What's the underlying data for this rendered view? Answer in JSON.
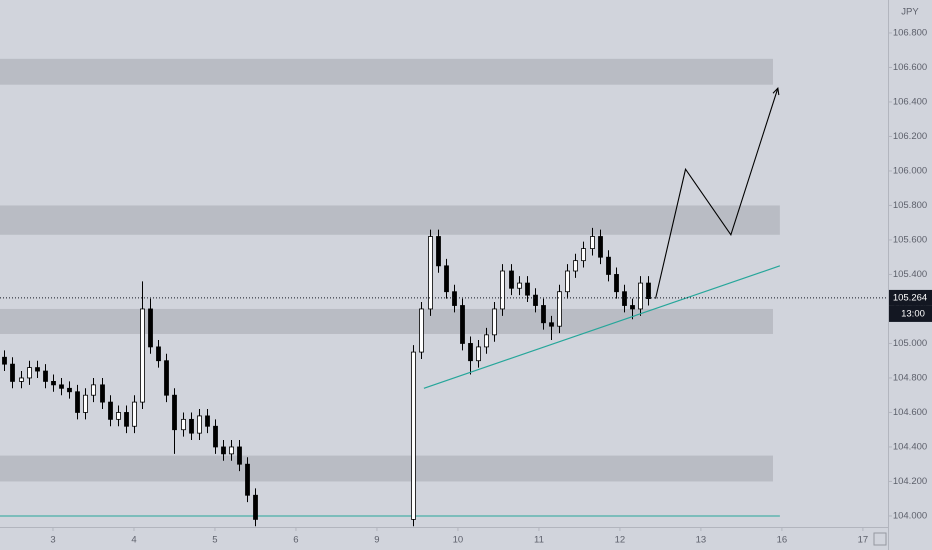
{
  "chart_data": {
    "type": "candlestick",
    "currency": "JPY",
    "x": [
      -0.6,
      -0.5,
      -0.4,
      -0.3,
      -0.2,
      -0.1,
      0,
      0.1,
      0.2,
      0.3,
      0.4,
      0.5,
      0.6,
      0.7,
      0.8,
      0.9,
      1.0,
      1.1,
      1.2,
      1.3,
      1.4,
      1.5,
      1.6,
      1.7,
      1.8,
      1.9,
      2.0,
      2.1,
      2.2,
      2.3,
      2.4,
      2.5,
      4.45,
      4.55,
      4.65,
      4.75,
      4.85,
      4.95,
      5.05,
      5.15,
      5.25,
      5.35,
      5.45,
      5.55,
      5.65,
      5.75,
      5.85,
      5.95,
      6.05,
      6.15,
      6.25,
      6.35,
      6.45,
      6.55,
      6.65,
      6.75,
      6.85,
      6.95,
      7.05,
      7.15,
      7.25,
      7.35
    ],
    "open": [
      104.92,
      104.88,
      104.78,
      104.8,
      104.86,
      104.84,
      104.78,
      104.76,
      104.74,
      104.72,
      104.6,
      104.7,
      104.76,
      104.66,
      104.56,
      104.6,
      104.52,
      104.66,
      105.2,
      104.98,
      104.9,
      104.7,
      104.5,
      104.56,
      104.48,
      104.58,
      104.52,
      104.4,
      104.36,
      104.4,
      104.3,
      104.12,
      103.98,
      104.95,
      105.2,
      105.62,
      105.45,
      105.3,
      105.22,
      105.0,
      104.9,
      104.98,
      105.05,
      105.2,
      105.42,
      105.32,
      105.35,
      105.28,
      105.22,
      105.12,
      105.1,
      105.3,
      105.42,
      105.48,
      105.55,
      105.62,
      105.5,
      105.4,
      105.3,
      105.22,
      105.2,
      105.35
    ],
    "high": [
      104.96,
      104.92,
      104.84,
      104.9,
      104.9,
      104.88,
      104.82,
      104.8,
      104.78,
      104.76,
      104.74,
      104.8,
      104.8,
      104.7,
      104.64,
      104.64,
      104.7,
      105.36,
      105.26,
      105.02,
      104.94,
      104.74,
      104.6,
      104.6,
      104.62,
      104.62,
      104.56,
      104.44,
      104.44,
      104.44,
      104.34,
      104.16,
      104.99,
      105.24,
      105.66,
      105.66,
      105.49,
      105.34,
      105.26,
      105.04,
      105.02,
      105.09,
      105.24,
      105.46,
      105.46,
      105.39,
      105.39,
      105.32,
      105.26,
      105.16,
      105.34,
      105.46,
      105.52,
      105.59,
      105.67,
      105.66,
      105.54,
      105.44,
      105.34,
      105.26,
      105.39,
      105.39
    ],
    "low": [
      104.84,
      104.74,
      104.74,
      104.76,
      104.8,
      104.74,
      104.72,
      104.7,
      104.68,
      104.56,
      104.56,
      104.66,
      104.62,
      104.52,
      104.52,
      104.48,
      104.48,
      104.62,
      104.94,
      104.86,
      104.66,
      104.36,
      104.46,
      104.44,
      104.44,
      104.48,
      104.36,
      104.32,
      104.32,
      104.26,
      104.08,
      103.94,
      103.94,
      104.91,
      105.16,
      105.41,
      105.26,
      105.18,
      104.96,
      104.82,
      104.86,
      104.94,
      105.01,
      105.16,
      105.28,
      105.28,
      105.24,
      105.18,
      105.08,
      105.02,
      105.06,
      105.26,
      105.38,
      105.44,
      105.51,
      105.46,
      105.36,
      105.26,
      105.18,
      105.14,
      105.16,
      105.22
    ],
    "close": [
      104.88,
      104.78,
      104.8,
      104.86,
      104.84,
      104.78,
      104.76,
      104.74,
      104.72,
      104.6,
      104.7,
      104.76,
      104.66,
      104.56,
      104.6,
      104.52,
      104.66,
      105.2,
      104.98,
      104.9,
      104.7,
      104.5,
      104.56,
      104.48,
      104.58,
      104.52,
      104.4,
      104.36,
      104.4,
      104.3,
      104.12,
      103.98,
      104.95,
      105.2,
      105.62,
      105.45,
      105.3,
      105.22,
      105.0,
      104.9,
      104.98,
      105.05,
      105.2,
      105.42,
      105.32,
      105.35,
      105.28,
      105.22,
      105.12,
      105.1,
      105.3,
      105.42,
      105.48,
      105.55,
      105.62,
      105.5,
      105.4,
      105.3,
      105.22,
      105.2,
      105.35,
      105.26
    ],
    "up_color": "#ffffff",
    "down_color": "#000000",
    "xlim": [
      -0.654,
      10.31
    ],
    "ylim": [
      103.936,
      106.991
    ],
    "xticks": [
      {
        "value": 0,
        "label": "3"
      },
      {
        "value": 1,
        "label": "4"
      },
      {
        "value": 2,
        "label": "5"
      },
      {
        "value": 3,
        "label": "6"
      },
      {
        "value": 4,
        "label": "9"
      },
      {
        "value": 5,
        "label": "10"
      },
      {
        "value": 6,
        "label": "11"
      },
      {
        "value": 7,
        "label": "12"
      },
      {
        "value": 8,
        "label": "13"
      },
      {
        "value": 9,
        "label": "16"
      },
      {
        "value": 10,
        "label": "17"
      }
    ],
    "yticks": [
      {
        "value": 104.0,
        "label": "104.000"
      },
      {
        "value": 104.2,
        "label": "104.200"
      },
      {
        "value": 104.4,
        "label": "104.400"
      },
      {
        "value": 104.6,
        "label": "104.600"
      },
      {
        "value": 104.8,
        "label": "104.800"
      },
      {
        "value": 105.0,
        "label": "105.000"
      },
      {
        "value": 105.2,
        "label": "105.200"
      },
      {
        "value": 105.4,
        "label": "105.400"
      },
      {
        "value": 105.6,
        "label": "105.600"
      },
      {
        "value": 105.8,
        "label": "105.800"
      },
      {
        "value": 106.0,
        "label": "106.000"
      },
      {
        "value": 106.2,
        "label": "106.200"
      },
      {
        "value": 106.4,
        "label": "106.400"
      },
      {
        "value": 106.6,
        "label": "106.600"
      },
      {
        "value": 106.8,
        "label": "106.800"
      }
    ],
    "zone_color": "#b9bcc4",
    "zones": [
      {
        "low": 106.5,
        "high": 106.65,
        "x_end": 8.89
      },
      {
        "low": 105.63,
        "high": 105.8,
        "x_end": 8.975
      },
      {
        "low": 105.055,
        "high": 105.2,
        "x_end": 8.89
      },
      {
        "low": 104.2,
        "high": 104.35,
        "x_end": 8.89
      }
    ],
    "trendline": {
      "x": [
        4.58,
        8.975
      ],
      "y": [
        104.74,
        105.45
      ],
      "color": "#26a69a"
    },
    "support_line": {
      "value": 104.0,
      "x_end": 8.975,
      "color": "#26a69a"
    },
    "projection": {
      "x": [
        7.44,
        7.81,
        8.37,
        8.95
      ],
      "y": [
        105.26,
        106.01,
        105.63,
        106.48
      ]
    },
    "last_price": {
      "value": 105.264,
      "label": "105.264"
    },
    "countdown": "13:00"
  }
}
